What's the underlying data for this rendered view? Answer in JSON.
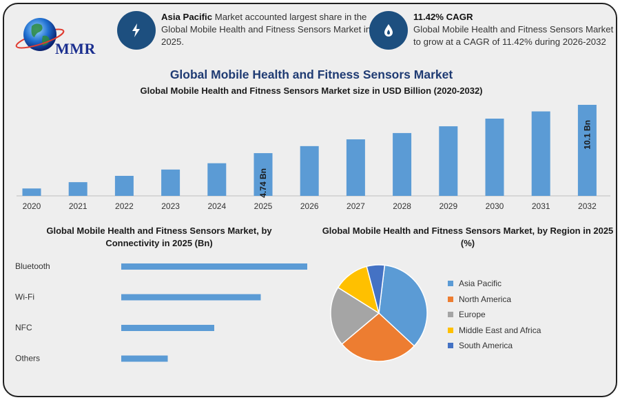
{
  "brand": {
    "name": "MMR"
  },
  "info_cards": [
    {
      "icon": "lightning-icon",
      "bold": "Asia Pacific",
      "text": " Market accounted largest share in the Global Mobile Health and Fitness Sensors Market in 2025."
    },
    {
      "icon": "flame-drop-icon",
      "bold": "11.42% CAGR",
      "text": "Global Mobile Health and Fitness Sensors Market to grow at a CAGR of 11.42% during 2026-2032"
    }
  ],
  "main_title": "Global Mobile Health and Fitness Sensors Market",
  "colors": {
    "bar": "#5b9bd5",
    "title": "#1f3b73",
    "badge": "#1d4f7f",
    "background": "#eeeeee"
  },
  "chart_data": [
    {
      "type": "bar",
      "title": "Global Mobile Health and Fitness Sensors Market size in USD Billion (2020-2032)",
      "categories": [
        "2020",
        "2021",
        "2022",
        "2023",
        "2024",
        "2025",
        "2026",
        "2027",
        "2028",
        "2029",
        "2030",
        "2031",
        "2032"
      ],
      "values": [
        0.82,
        1.52,
        2.22,
        2.92,
        3.62,
        4.74,
        5.52,
        6.27,
        6.97,
        7.72,
        8.57,
        9.37,
        10.1
      ],
      "data_labels": {
        "2025": "4.74 Bn",
        "2032": "10.1 Bn"
      },
      "ylim": [
        0,
        10.1
      ],
      "grid": false
    },
    {
      "type": "bar",
      "orientation": "horizontal",
      "title": "Global Mobile Health and Fitness Sensors Market, by Connectivity in 2025 (Bn)",
      "categories": [
        "Bluetooth",
        "Wi-Fi",
        "NFC",
        "Others"
      ],
      "values": [
        2.0,
        1.5,
        1.0,
        0.5
      ],
      "grid": false
    },
    {
      "type": "pie",
      "title": "Global Mobile Health and Fitness Sensors Market, by Region in 2025 (%)",
      "labels": [
        "Asia Pacific",
        "North America",
        "Europe",
        "Middle East and Africa",
        "South America"
      ],
      "values": [
        35,
        27,
        20,
        12,
        6
      ],
      "colors": [
        "#5b9bd5",
        "#ed7d31",
        "#a5a5a5",
        "#ffc000",
        "#4472c4"
      ],
      "legend": "right"
    }
  ]
}
